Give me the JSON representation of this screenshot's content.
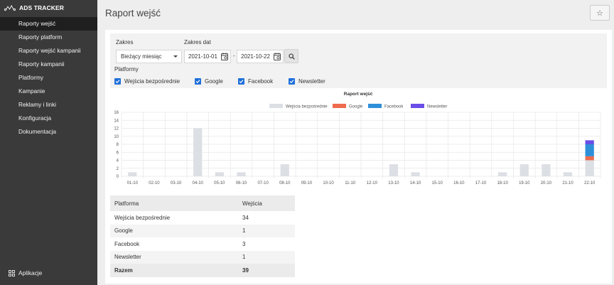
{
  "app": {
    "name": "ADS TRACKER"
  },
  "sidebar": {
    "items": [
      {
        "label": "Raporty wejść"
      },
      {
        "label": "Raporty platform"
      },
      {
        "label": "Raporty wejść kampanii"
      },
      {
        "label": "Raporty kampanii"
      },
      {
        "label": "Platformy"
      },
      {
        "label": "Kampanie"
      },
      {
        "label": "Reklamy i linki"
      },
      {
        "label": "Konfiguracja"
      },
      {
        "label": "Dokumentacja"
      }
    ],
    "apps_label": "Aplikacje"
  },
  "header": {
    "title": "Raport wejść",
    "star_glyph": "☆"
  },
  "filters": {
    "range_label": "Zakres",
    "range_value": "Bieżący miesiąc",
    "dates_label": "Zakres dat",
    "date_from": "2021-10-01",
    "date_to": "2021-10-22",
    "date_sep": "-",
    "platforms_label": "Platformy",
    "platforms": [
      {
        "label": "Wejścia bezpośrednie",
        "checked": true
      },
      {
        "label": "Google",
        "checked": true
      },
      {
        "label": "Facebook",
        "checked": true
      },
      {
        "label": "Newsletter",
        "checked": true
      }
    ]
  },
  "chart_data": {
    "type": "bar",
    "stacked": true,
    "title": "Raport wejść",
    "legend_position": "top",
    "grid": true,
    "categories": [
      "01-10",
      "02-10",
      "03-10",
      "04-10",
      "05-10",
      "06-10",
      "07-10",
      "08-10",
      "09-10",
      "10-10",
      "11-10",
      "12-10",
      "13-10",
      "14-10",
      "15-10",
      "16-10",
      "17-10",
      "18-10",
      "19-10",
      "20-10",
      "21-10",
      "22-10"
    ],
    "ylim": [
      0,
      16
    ],
    "yticks": [
      0,
      2,
      4,
      6,
      8,
      10,
      12,
      14,
      16
    ],
    "series": [
      {
        "name": "Wejścia bezpośrednie",
        "color": "#dcdfe4",
        "values": [
          1,
          0,
          0,
          12,
          1,
          1,
          0,
          3,
          0,
          0,
          0,
          0,
          3,
          1,
          0,
          0,
          0,
          1,
          3,
          3,
          1,
          4
        ]
      },
      {
        "name": "Google",
        "color": "#ee6b4d",
        "values": [
          0,
          0,
          0,
          0,
          0,
          0,
          0,
          0,
          0,
          0,
          0,
          0,
          0,
          0,
          0,
          0,
          0,
          0,
          0,
          0,
          0,
          1
        ]
      },
      {
        "name": "Facebook",
        "color": "#2e8fd8",
        "values": [
          0,
          0,
          0,
          0,
          0,
          0,
          0,
          0,
          0,
          0,
          0,
          0,
          0,
          0,
          0,
          0,
          0,
          0,
          0,
          0,
          0,
          3
        ]
      },
      {
        "name": "Newsletter",
        "color": "#6a4ee6",
        "values": [
          0,
          0,
          0,
          0,
          0,
          0,
          0,
          0,
          0,
          0,
          0,
          0,
          0,
          0,
          0,
          0,
          0,
          0,
          0,
          0,
          0,
          1
        ]
      }
    ]
  },
  "table": {
    "headers": [
      "Platforma",
      "Wejścia"
    ],
    "rows": [
      [
        "Wejścia bezpośrednie",
        "34"
      ],
      [
        "Google",
        "1"
      ],
      [
        "Facebook",
        "3"
      ],
      [
        "Newsletter",
        "1"
      ]
    ],
    "total": [
      "Razem",
      "39"
    ]
  }
}
